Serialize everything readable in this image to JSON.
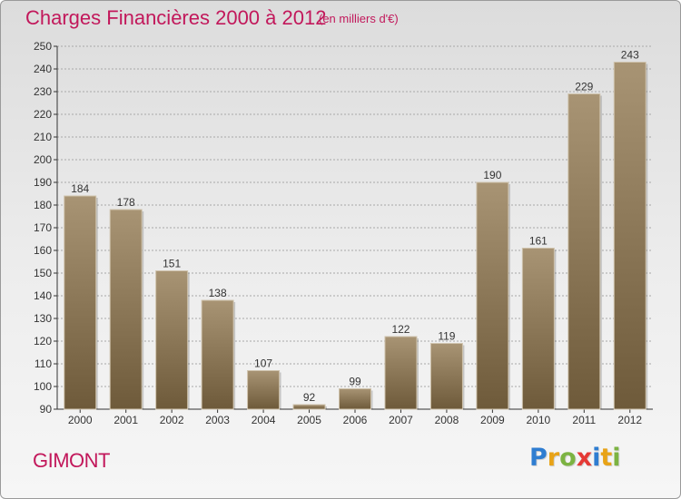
{
  "title": "Charges Financières 2000 à 2012",
  "subtitle": "(en milliers d'€)",
  "city": "GIMONT",
  "brand": {
    "text": "Proxiti",
    "colors": [
      "#2e7dd1",
      "#e8a317",
      "#7cb342",
      "#e53935",
      "#2e7dd1",
      "#e8a317",
      "#7cb342"
    ]
  },
  "colors": {
    "title": "#c2185b",
    "bar_top": "#a89474",
    "bar_bottom": "#6e5a3a",
    "grid": "#a8a8a8",
    "axis": "#333333"
  },
  "chart_data": {
    "type": "bar",
    "categories": [
      "2000",
      "2001",
      "2002",
      "2003",
      "2004",
      "2005",
      "2006",
      "2007",
      "2008",
      "2009",
      "2010",
      "2011",
      "2012"
    ],
    "values": [
      184,
      178,
      151,
      138,
      107,
      92,
      99,
      122,
      119,
      190,
      161,
      229,
      243
    ],
    "ylim": [
      90,
      250
    ],
    "yticks": [
      90,
      100,
      110,
      120,
      130,
      140,
      150,
      160,
      170,
      180,
      190,
      200,
      210,
      220,
      230,
      240,
      250
    ],
    "grid": true,
    "data_labels": true
  }
}
